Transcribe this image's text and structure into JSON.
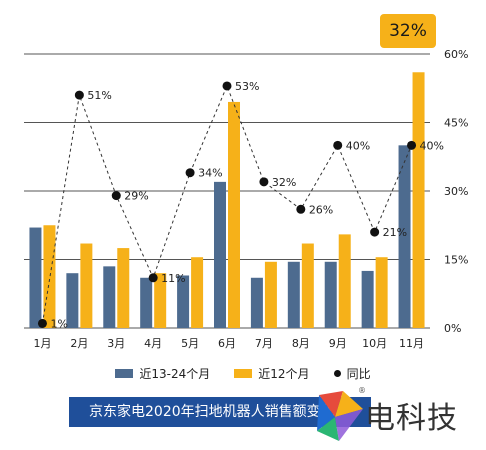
{
  "chart_data": {
    "type": "bar",
    "title": "",
    "categories": [
      "1月",
      "2月",
      "3月",
      "4月",
      "5月",
      "6月",
      "7月",
      "8月",
      "9月",
      "10月",
      "11月"
    ],
    "series": [
      {
        "name": "近13-24个月",
        "kind": "bar",
        "color": "#4d6b8f",
        "values": [
          22,
          12,
          13.5,
          11,
          11.5,
          32,
          11,
          14.5,
          14.5,
          12.5,
          40
        ]
      },
      {
        "name": "近12个月",
        "kind": "bar",
        "color": "#f6b119",
        "values": [
          22.5,
          18.5,
          17.5,
          12,
          15.5,
          49.5,
          14.5,
          18.5,
          20.5,
          15.5,
          56
        ]
      },
      {
        "name": "同比",
        "kind": "line",
        "axis": "percent",
        "color": "#111111",
        "values": [
          1,
          51,
          29,
          11,
          34,
          53,
          32,
          26,
          40,
          21,
          40
        ],
        "labels": [
          "1%",
          "51%",
          "29%",
          "11%",
          "34%",
          "53%",
          "32%",
          "26%",
          "40%",
          "21%",
          "40%"
        ]
      }
    ],
    "bar_ylim": [
      0,
      60
    ],
    "right_axis": {
      "ylim": [
        0,
        60
      ],
      "ticks": [
        "0%",
        "15%",
        "30%",
        "45%",
        "60%"
      ]
    },
    "grid": true,
    "legend_position": "bottom",
    "callout": "32%"
  },
  "caption": "京东家电2020年扫地机器人销售额变化",
  "logo_text": "电科技",
  "logo_mark": "®"
}
